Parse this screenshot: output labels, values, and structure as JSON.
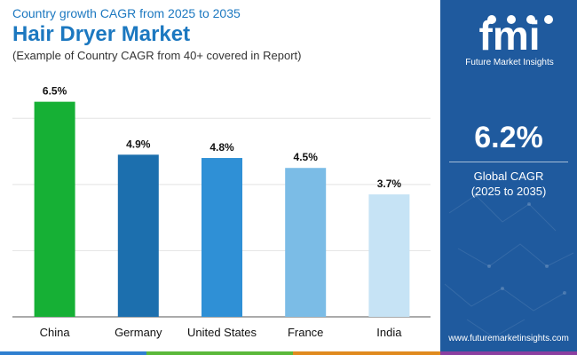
{
  "header": {
    "kicker": "Country growth CAGR from 2025 to 2035",
    "title": "Hair Dryer Market",
    "note": "(Example of Country CAGR from 40+ covered in Report)"
  },
  "chart_data": {
    "type": "bar",
    "categories": [
      "China",
      "Germany",
      "United States",
      "France",
      "India"
    ],
    "values": [
      6.5,
      4.9,
      4.8,
      4.5,
      3.7
    ],
    "value_labels": [
      "6.5%",
      "4.9%",
      "4.8%",
      "4.5%",
      "3.7%"
    ],
    "colors": [
      "#16b035",
      "#1c6fae",
      "#2f90d6",
      "#7bbce6",
      "#c6e3f5"
    ],
    "ylim": [
      0,
      7
    ],
    "grid": true,
    "title": "",
    "xlabel": "",
    "ylabel": ""
  },
  "sidebar": {
    "logo_mark": "fmi",
    "logo_text": "Future Market Insights",
    "stat_value": "6.2%",
    "stat_label_1": "Global CAGR",
    "stat_label_2": "(2025 to 2035)",
    "website": "www.futuremarketinsights.com",
    "background": "#1f5a9e"
  },
  "footer": {
    "stripe_colors": [
      "#2f7fd0",
      "#5bb83a",
      "#e08a1e",
      "#8a3fa0"
    ]
  }
}
